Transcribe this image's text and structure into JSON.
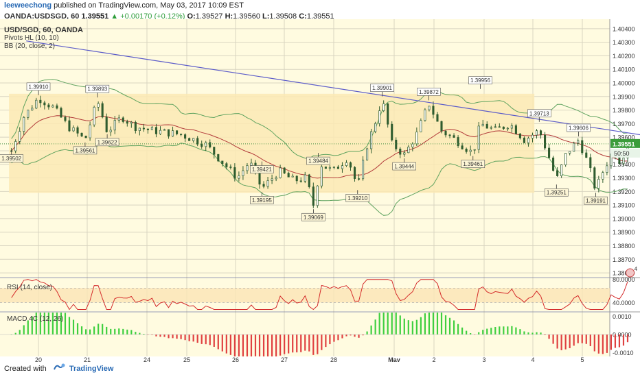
{
  "header": {
    "author": "leeweechong",
    "published_text": "published on TradingView.com, May 03, 2017 10:09 EST",
    "symbol": "OANDA:USDSGD, 60",
    "last": "1.39551",
    "change": "▲ +0.00170 (+0.12%)",
    "o_label": "O:",
    "o_value": "1.39527",
    "h_label": "H:",
    "h_value": "1.39560",
    "l_label": "L:",
    "l_value": "1.39508",
    "c_label": "C:",
    "c_value": "1.39551"
  },
  "legend": {
    "title": "USD/SGD, 60, OANDA",
    "pivots": "Pivots HL (10, 10)",
    "bb": "BB (20, close, 2)",
    "rsi": "RSI (14, close)",
    "macd": "MACD 4C (12, 26)"
  },
  "footer": {
    "created": "Created with",
    "brand": "TradingView"
  },
  "colors": {
    "background": "#fffbe0",
    "zone": "#fce9b4",
    "grid": "#d8d4c0",
    "candle": "#2f5c2f",
    "bb": "#5fa35f",
    "bb_mid": "#b23a3a",
    "trendline": "#5b5bc9",
    "rsi": "#d42a2a",
    "macd_pos": "#3fcf3f",
    "macd_neg": "#e04040"
  },
  "chart_data": {
    "type": "candlestick",
    "x_ticks": [
      "20",
      "21",
      "24",
      "25",
      "26",
      "27",
      "28",
      "May",
      "2",
      "3",
      "4",
      "5"
    ],
    "price_ticks": [
      "1.40400",
      "1.40300",
      "1.40200",
      "1.40100",
      "1.40000",
      "1.39900",
      "1.39800",
      "1.39700",
      "1.39600",
      "1.39500",
      "1.39400",
      "1.39300",
      "1.39200",
      "1.39100",
      "1.39000",
      "1.38900",
      "1.38800",
      "1.38700",
      "1.38600"
    ],
    "price_range": [
      1.3857,
      1.4047
    ],
    "current_price": "1.39551",
    "countdown": "50:50",
    "pivot_labels": [
      {
        "text": "1.39910",
        "x": 20.0,
        "price": 1.3991,
        "kind": "high"
      },
      {
        "text": "1.39893",
        "x": 21.2,
        "price": 1.39893,
        "kind": "high"
      },
      {
        "text": "1.39561",
        "x": 20.95,
        "price": 1.39561,
        "kind": "low"
      },
      {
        "text": "1.39622",
        "x": 21.4,
        "price": 1.39622,
        "kind": "low"
      },
      {
        "text": "1.39502",
        "x": 19.45,
        "price": 1.39502,
        "kind": "low"
      },
      {
        "text": "1.39421",
        "x": 24.55,
        "price": 1.39421,
        "kind": "low"
      },
      {
        "text": "1.39484",
        "x": 25.7,
        "price": 1.39484,
        "kind": "low"
      },
      {
        "text": "1.39195",
        "x": 24.55,
        "price": 1.39195,
        "kind": "low"
      },
      {
        "text": "1.39069",
        "x": 25.6,
        "price": 1.39069,
        "kind": "low"
      },
      {
        "text": "1.39210",
        "x": 26.5,
        "price": 1.3921,
        "kind": "low"
      },
      {
        "text": "1.39901",
        "x": 27.0,
        "price": 1.39901,
        "kind": "high"
      },
      {
        "text": "1.39872",
        "x": 27.95,
        "price": 1.39872,
        "kind": "high"
      },
      {
        "text": "1.39444",
        "x": 27.45,
        "price": 1.39444,
        "kind": "low"
      },
      {
        "text": "1.39461",
        "x": 28.85,
        "price": 1.39461,
        "kind": "low"
      },
      {
        "text": "1.39956",
        "x": 29.0,
        "price": 1.39956,
        "kind": "high"
      },
      {
        "text": "1.39713",
        "x": 30.2,
        "price": 1.39713,
        "kind": "high"
      },
      {
        "text": "1.39606",
        "x": 31.0,
        "price": 1.39606,
        "kind": "high"
      },
      {
        "text": "1.39251",
        "x": 30.55,
        "price": 1.39251,
        "kind": "low"
      },
      {
        "text": "1.39191",
        "x": 31.35,
        "price": 1.39191,
        "kind": "low"
      }
    ],
    "zone": {
      "price_top": 1.3992,
      "price_bottom": 1.3919,
      "x_start": 19.4,
      "x_end": 30.1
    },
    "trendline": {
      "x1": 19.75,
      "p1": 1.4031,
      "x2": 33.4,
      "p2": 1.39555
    },
    "rsi": {
      "ticks": [
        "80.0000",
        "40.0000"
      ],
      "range": [
        25,
        82
      ],
      "band": [
        40,
        65
      ]
    },
    "macd": {
      "ticks": [
        "0.0010",
        "0.0000",
        "-0.0010"
      ],
      "range": [
        -0.0012,
        0.0012
      ]
    },
    "events": [
      {
        "label": "4",
        "x": 32.05
      },
      {
        "label": "7",
        "x": 33.0
      },
      {
        "label": "0",
        "x": 33.15
      }
    ]
  }
}
